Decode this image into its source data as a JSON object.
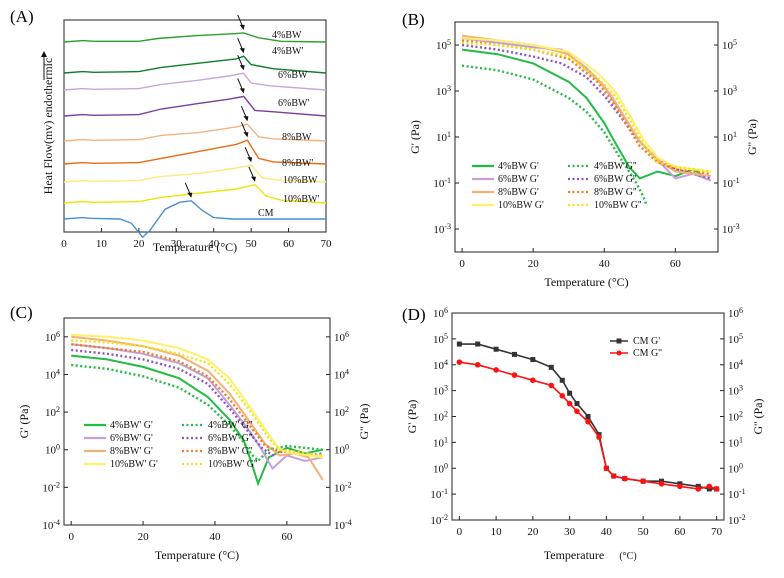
{
  "chart_data": [
    {
      "panel": "(A)",
      "type": "line",
      "title": "",
      "xlabel": "Temperature (°C)",
      "ylabel": "Heat Flow(mv) endothermic",
      "xlim": [
        0,
        70
      ],
      "xticks": [
        "0",
        "10",
        "20",
        "30",
        "40",
        "50",
        "60",
        "70"
      ],
      "series": [
        {
          "name": "4%BW",
          "color": "#2ca02c",
          "x": [
            0,
            5,
            8,
            20,
            25,
            35,
            46,
            48,
            52,
            58,
            70
          ],
          "y": [
            0.0,
            0.1,
            0.05,
            0.05,
            0.25,
            0.45,
            0.6,
            0.65,
            0.3,
            0.05,
            0.0
          ]
        },
        {
          "name": "4%BW'",
          "color": "#0f7d26",
          "x": [
            0,
            5,
            8,
            20,
            26,
            36,
            46,
            48,
            50,
            56,
            70
          ],
          "y": [
            0.0,
            0.1,
            0.05,
            0.1,
            0.4,
            0.7,
            1.0,
            1.2,
            0.6,
            0.3,
            0.0
          ]
        },
        {
          "name": "6%BW",
          "color": "#c7a6dc",
          "x": [
            0,
            5,
            8,
            20,
            26,
            36,
            44,
            48,
            50,
            55,
            70
          ],
          "y": [
            0.0,
            0.1,
            0.05,
            0.1,
            0.4,
            0.7,
            1.0,
            1.2,
            0.5,
            0.3,
            0.0
          ]
        },
        {
          "name": "6%BW'",
          "color": "#7b3fa0",
          "x": [
            0,
            5,
            8,
            20,
            26,
            36,
            44,
            48,
            51,
            56,
            70
          ],
          "y": [
            0.0,
            0.1,
            0.05,
            0.1,
            0.5,
            0.9,
            1.2,
            1.4,
            0.4,
            0.3,
            0.0
          ]
        },
        {
          "name": "8%BW",
          "color": "#f3b380",
          "x": [
            0,
            5,
            8,
            20,
            26,
            36,
            46,
            49,
            52,
            56,
            70
          ],
          "y": [
            0.0,
            0.1,
            0.05,
            0.1,
            0.4,
            0.6,
            1.0,
            1.2,
            0.3,
            0.15,
            0.0
          ]
        },
        {
          "name": "8%BW'",
          "color": "#ec6a12",
          "x": [
            0,
            5,
            8,
            20,
            26,
            36,
            46,
            49,
            52,
            56,
            70
          ],
          "y": [
            0.0,
            0.1,
            0.05,
            0.1,
            0.4,
            0.9,
            1.4,
            1.7,
            0.4,
            0.15,
            0.0
          ]
        },
        {
          "name": "10%BW",
          "color": "#ffe97a",
          "x": [
            0,
            5,
            8,
            20,
            26,
            36,
            46,
            50,
            53,
            57,
            70
          ],
          "y": [
            0.0,
            0.1,
            0.05,
            0.1,
            0.4,
            0.6,
            1.0,
            1.2,
            0.3,
            0.15,
            0.0
          ]
        },
        {
          "name": "10%BW'",
          "color": "#f1e20a",
          "x": [
            0,
            5,
            8,
            20,
            26,
            36,
            46,
            51,
            54,
            58,
            70
          ],
          "y": [
            0.0,
            0.1,
            0.05,
            0.1,
            0.4,
            0.7,
            1.0,
            1.3,
            0.5,
            0.2,
            0.0
          ]
        },
        {
          "name": "CM",
          "color": "#4a8fcf",
          "x": [
            0,
            5,
            7,
            15,
            18,
            21,
            23,
            27,
            31,
            34,
            37,
            40,
            45,
            70
          ],
          "y": [
            0.0,
            0.1,
            0.05,
            0.0,
            -0.3,
            -1.3,
            -0.8,
            0.7,
            1.2,
            1.3,
            0.6,
            0.1,
            0.0,
            0.0
          ]
        }
      ]
    },
    {
      "panel": "(B)",
      "type": "line",
      "xlabel": "Temperature (°C)",
      "ylabel": "G' (Pa)",
      "y2label": "G'' (Pa)",
      "xlim": [
        -2,
        72
      ],
      "ylim_log10": [
        -4,
        6
      ],
      "xticks": [
        "0",
        "20",
        "40",
        "60"
      ],
      "yticks": [
        "10-3",
        "10-1",
        "101",
        "103",
        "105"
      ],
      "series": [
        {
          "name": "4%BW G'",
          "color": "#22bb44",
          "dash": "solid",
          "x": [
            0,
            10,
            20,
            30,
            35,
            40,
            44,
            47,
            50,
            55,
            60,
            65,
            68
          ],
          "y_log10": [
            4.8,
            4.6,
            4.2,
            3.4,
            2.7,
            1.6,
            0.5,
            -0.3,
            -0.8,
            -0.5,
            -0.7,
            -0.4,
            -0.7
          ]
        },
        {
          "name": "4%BW G''",
          "color": "#22bb44",
          "dash": "dotted",
          "x": [
            0,
            10,
            20,
            30,
            35,
            40,
            44,
            47,
            49,
            51,
            52
          ],
          "y_log10": [
            4.1,
            3.9,
            3.5,
            2.7,
            2.1,
            1.2,
            0.2,
            -0.5,
            -1.0,
            -1.6,
            -2.0
          ]
        },
        {
          "name": "6%BW G'",
          "color": "#c3a1d8",
          "dash": "solid",
          "x": [
            0,
            10,
            20,
            28,
            35,
            40,
            45,
            50,
            55,
            60,
            65,
            70
          ],
          "y_log10": [
            5.3,
            5.1,
            4.9,
            4.8,
            4.0,
            3.2,
            2.0,
            0.8,
            0.0,
            -0.8,
            -0.6,
            -0.9
          ]
        },
        {
          "name": "6%BW G''",
          "color": "#8a55c0",
          "dash": "dotted",
          "x": [
            0,
            10,
            20,
            28,
            35,
            40,
            45,
            50,
            55,
            60,
            65,
            70
          ],
          "y_log10": [
            5.0,
            4.8,
            4.5,
            4.2,
            3.6,
            2.8,
            1.8,
            0.8,
            0.0,
            -0.4,
            -0.6,
            -0.8
          ]
        },
        {
          "name": "8%BW G'",
          "color": "#f4b07a",
          "dash": "solid",
          "x": [
            0,
            10,
            20,
            30,
            38,
            42,
            46,
            50,
            55,
            60,
            65,
            70
          ],
          "y_log10": [
            5.4,
            5.2,
            5.0,
            4.6,
            3.5,
            2.8,
            1.8,
            0.8,
            0.0,
            -0.5,
            -0.6,
            -0.7
          ]
        },
        {
          "name": "8%BW G''",
          "color": "#ee7c20",
          "dash": "dotted",
          "x": [
            0,
            10,
            20,
            30,
            38,
            42,
            46,
            50,
            55,
            60,
            65,
            70
          ],
          "y_log10": [
            5.2,
            5.0,
            4.8,
            4.4,
            3.4,
            2.6,
            1.6,
            0.6,
            -0.1,
            -0.4,
            -0.5,
            -0.6
          ]
        },
        {
          "name": "10%BW G'",
          "color": "#fff06a",
          "dash": "solid",
          "x": [
            0,
            10,
            20,
            30,
            38,
            43,
            47,
            51,
            55,
            60,
            65,
            70
          ],
          "y_log10": [
            5.3,
            5.2,
            5.0,
            4.7,
            3.8,
            3.0,
            2.0,
            0.9,
            0.1,
            -0.3,
            -0.4,
            -0.5
          ]
        },
        {
          "name": "10%BW G''",
          "color": "#f2e40c",
          "dash": "dotted",
          "x": [
            0,
            10,
            20,
            30,
            38,
            43,
            47,
            51,
            55,
            60,
            65,
            70
          ],
          "y_log10": [
            5.1,
            5.0,
            4.8,
            4.5,
            3.6,
            2.8,
            1.8,
            0.7,
            -0.1,
            -0.3,
            -0.4,
            -0.5
          ]
        }
      ]
    },
    {
      "panel": "(C)",
      "type": "line",
      "xlabel": "Temperature (°C)",
      "ylabel": "G' (Pa)",
      "y2label": "G'' (Pa)",
      "xlim": [
        -2,
        72
      ],
      "ylim_log10": [
        -4,
        7
      ],
      "xticks": [
        "0",
        "20",
        "40",
        "60"
      ],
      "yticks": [
        "10-4",
        "10-2",
        "100",
        "102",
        "104",
        "106"
      ],
      "series": [
        {
          "name": "4%BW' G'",
          "color": "#22bb44",
          "dash": "solid",
          "x": [
            0,
            10,
            20,
            30,
            38,
            44,
            48,
            50,
            52,
            55,
            60,
            65,
            70
          ],
          "y_log10": [
            5.0,
            4.8,
            4.4,
            3.8,
            2.8,
            1.6,
            0.5,
            -0.6,
            -1.8,
            -0.4,
            0.1,
            -0.2,
            0.0
          ]
        },
        {
          "name": "4%BW' G''",
          "color": "#22bb44",
          "dash": "dotted",
          "x": [
            0,
            10,
            20,
            30,
            38,
            44,
            48,
            50,
            52,
            55,
            60,
            65,
            70
          ],
          "y_log10": [
            4.5,
            4.3,
            3.9,
            3.3,
            2.4,
            1.3,
            0.4,
            -0.2,
            -0.6,
            0.0,
            0.2,
            0.1,
            0.0
          ]
        },
        {
          "name": "6%BW' G'",
          "color": "#c3a1d8",
          "dash": "solid",
          "x": [
            0,
            10,
            20,
            30,
            38,
            44,
            50,
            53,
            56,
            60,
            65,
            70
          ],
          "y_log10": [
            5.6,
            5.4,
            5.1,
            4.6,
            3.8,
            2.4,
            0.9,
            0.0,
            -1.0,
            -0.3,
            -0.6,
            -0.4
          ]
        },
        {
          "name": "6%BW' G''",
          "color": "#8a55c0",
          "dash": "dotted",
          "x": [
            0,
            10,
            20,
            30,
            38,
            44,
            50,
            53,
            56,
            60,
            65,
            70
          ],
          "y_log10": [
            5.3,
            5.1,
            4.8,
            4.3,
            3.5,
            2.2,
            0.8,
            0.1,
            -0.3,
            0.0,
            -0.3,
            -0.2
          ]
        },
        {
          "name": "8%BW' G'",
          "color": "#f4b07a",
          "dash": "solid",
          "x": [
            0,
            10,
            20,
            30,
            38,
            44,
            50,
            54,
            58,
            62,
            66,
            70
          ],
          "y_log10": [
            6.0,
            5.8,
            5.5,
            5.0,
            4.2,
            3.0,
            1.4,
            0.3,
            -0.3,
            -0.2,
            -0.4,
            -1.6
          ]
        },
        {
          "name": "8%BW' G''",
          "color": "#ee7c20",
          "dash": "dotted",
          "x": [
            0,
            10,
            20,
            30,
            38,
            44,
            50,
            54,
            58,
            62,
            66,
            70
          ],
          "y_log10": [
            5.6,
            5.4,
            5.2,
            4.7,
            3.9,
            2.7,
            1.2,
            0.2,
            -0.1,
            -0.1,
            -0.2,
            -0.3
          ]
        },
        {
          "name": "10%BW' G'",
          "color": "#fff06a",
          "dash": "solid",
          "x": [
            0,
            10,
            20,
            30,
            38,
            44,
            50,
            55,
            58,
            62,
            66,
            70
          ],
          "y_log10": [
            6.1,
            6.0,
            5.8,
            5.4,
            4.8,
            3.8,
            2.2,
            0.8,
            0.0,
            -0.2,
            -0.3,
            -0.4
          ]
        },
        {
          "name": "10%BW' G''",
          "color": "#f2e40c",
          "dash": "dotted",
          "x": [
            0,
            10,
            20,
            30,
            38,
            44,
            50,
            55,
            58,
            62,
            66,
            70
          ],
          "y_log10": [
            5.8,
            5.7,
            5.5,
            5.1,
            4.6,
            3.5,
            2.0,
            0.6,
            0.0,
            -0.1,
            -0.2,
            -0.3
          ]
        }
      ]
    },
    {
      "panel": "(D)",
      "type": "line",
      "xlabel": "Temperature",
      "xunit": "(°C)",
      "ylabel": "G' (Pa)",
      "y2label": "G'' (Pa)",
      "xlim": [
        -2,
        72
      ],
      "ylim_log10": [
        -2,
        6
      ],
      "xticks": [
        "0",
        "10",
        "20",
        "30",
        "40",
        "50",
        "60",
        "70"
      ],
      "yticks": [
        "10-2",
        "10-1",
        "100",
        "101",
        "102",
        "103",
        "104",
        "105",
        "106"
      ],
      "series": [
        {
          "name": "CM G'",
          "color": "#333333",
          "marker": "square",
          "x": [
            0,
            5,
            10,
            15,
            20,
            25,
            28,
            30,
            32,
            35,
            38,
            40,
            42,
            45,
            50,
            55,
            60,
            65,
            68,
            70
          ],
          "y_log10": [
            4.8,
            4.8,
            4.6,
            4.4,
            4.2,
            3.9,
            3.4,
            2.9,
            2.5,
            2.0,
            1.3,
            0.0,
            -0.3,
            -0.4,
            -0.5,
            -0.5,
            -0.6,
            -0.7,
            -0.8,
            -0.8
          ]
        },
        {
          "name": "CM G''",
          "color": "#ff1111",
          "marker": "circle",
          "x": [
            0,
            5,
            10,
            15,
            20,
            25,
            28,
            30,
            32,
            35,
            38,
            40,
            42,
            45,
            50,
            55,
            60,
            65,
            68,
            70
          ],
          "y_log10": [
            4.1,
            4.0,
            3.8,
            3.6,
            3.4,
            3.2,
            2.8,
            2.5,
            2.2,
            1.8,
            1.2,
            0.0,
            -0.3,
            -0.4,
            -0.5,
            -0.6,
            -0.7,
            -0.8,
            -0.7,
            -0.8
          ]
        }
      ]
    }
  ]
}
